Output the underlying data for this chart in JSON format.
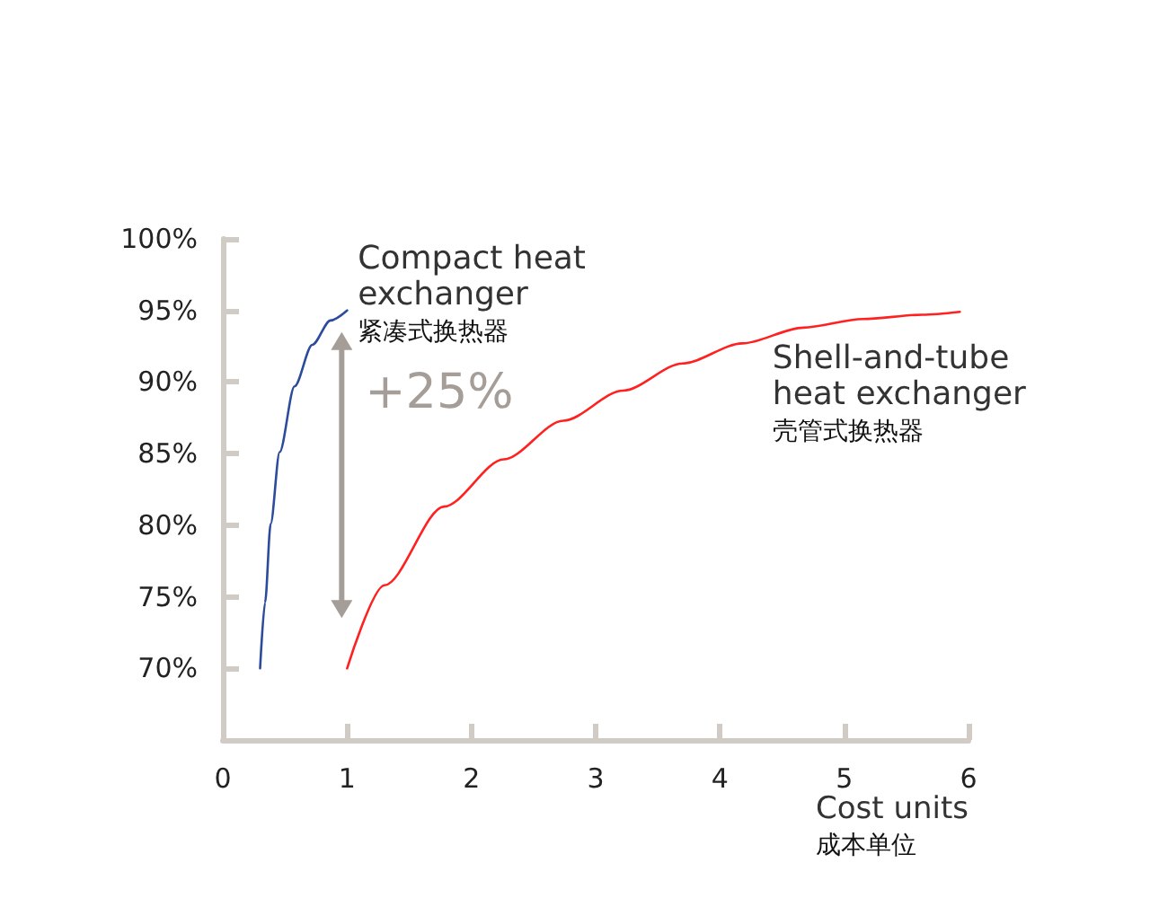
{
  "chart_data": {
    "type": "line",
    "xlabel": "Cost units\n成本单位",
    "series": [
      {
        "name": "Compact heat\nexchanger\n紧凑式换热器",
        "color": "#2c4b9b",
        "x": [
          0.3,
          0.34,
          0.385,
          0.457,
          0.577,
          0.72,
          0.866,
          1.0
        ],
        "values": [
          70,
          74.6,
          80.1,
          85.1,
          89.7,
          92.6,
          94.3,
          95
        ]
      },
      {
        "name": "Shell-and-tube\nheat exchanger\n壳管式换热器",
        "color": "#ff2020",
        "x": [
          1.0,
          1.3,
          1.78,
          2.26,
          2.74,
          3.22,
          3.7,
          4.18,
          4.67,
          5.15,
          5.63,
          5.93
        ],
        "values": [
          70,
          75.8,
          81.3,
          84.6,
          87.3,
          89.4,
          91.3,
          92.7,
          93.8,
          94.4,
          94.7,
          94.9
        ]
      }
    ],
    "annotations": [
      "+25%"
    ],
    "xlim": [
      0,
      6
    ],
    "xticks": [
      0,
      1,
      2,
      3,
      4,
      5,
      6
    ],
    "ylim": [
      65,
      100
    ],
    "yticks": [
      {
        "value": 70,
        "label": "70%"
      },
      {
        "value": 75,
        "label": "75%"
      },
      {
        "value": 80,
        "label": "80%"
      },
      {
        "value": 85,
        "label": "85%"
      },
      {
        "value": 90,
        "label": "90%"
      },
      {
        "value": 95,
        "label": "95%"
      },
      {
        "value": 100,
        "label": "100%"
      }
    ],
    "grid": false,
    "legend": false,
    "marker": "none",
    "line_style": "solid"
  }
}
